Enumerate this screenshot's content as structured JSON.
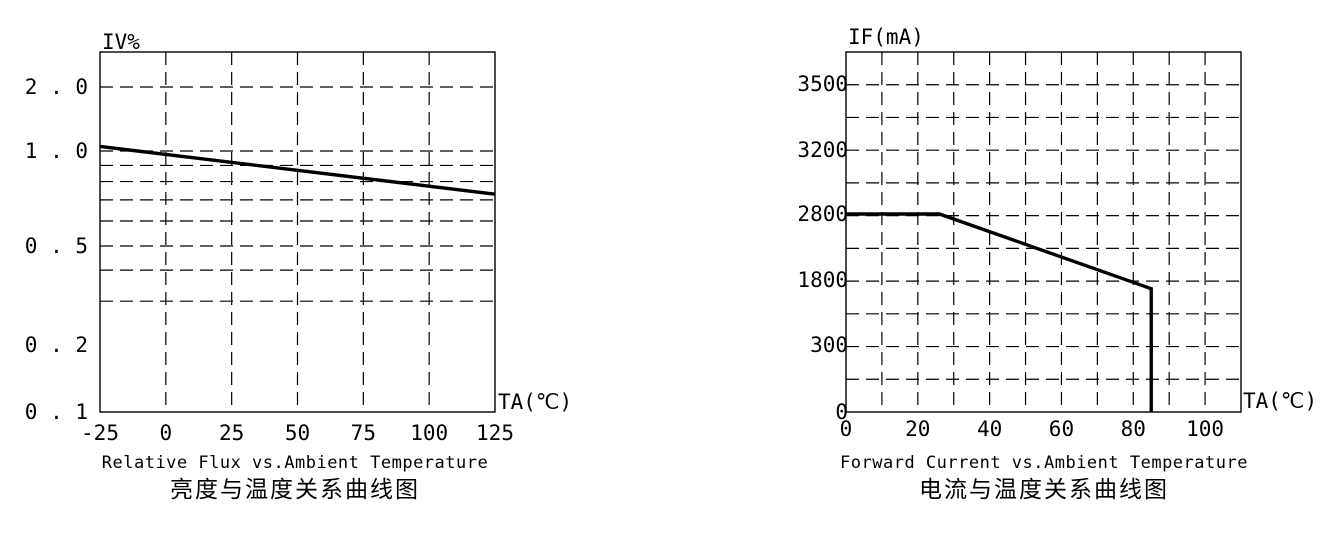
{
  "chart_data": [
    {
      "type": "line",
      "ylabel": "IV%",
      "xlabel": "TA(℃)",
      "title": "Relative Flux vs.Ambient Temperature",
      "subtitle": "亮度与温度关系曲线图",
      "x_ticks": [
        "-25",
        "0",
        "25",
        "50",
        "75",
        "100",
        "125"
      ],
      "y_ticks": [
        "0.1",
        "0.2",
        "0.5",
        "1.0",
        "2.0"
      ],
      "y_scale": "log",
      "xlim": [
        -25,
        125
      ],
      "ylim": [
        0.1,
        3.0
      ],
      "grid": true,
      "series": [
        {
          "x": [
            -25,
            125
          ],
          "y": [
            1.05,
            0.73
          ]
        }
      ]
    },
    {
      "type": "line",
      "ylabel": "IF(mA)",
      "xlabel": "TA(℃)",
      "title": "Forward Current vs.Ambient Temperature",
      "subtitle": "电流与温度关系曲线图",
      "x_ticks": [
        "0",
        "20",
        "40",
        "60",
        "80",
        "100"
      ],
      "y_ticks": [
        "0",
        "300",
        "1800",
        "2800",
        "3200",
        "3500"
      ],
      "xlim": [
        0,
        110
      ],
      "grid": true,
      "series": [
        {
          "x": [
            0,
            26,
            85,
            85
          ],
          "y": [
            2800,
            2800,
            1600,
            0
          ]
        }
      ]
    }
  ]
}
